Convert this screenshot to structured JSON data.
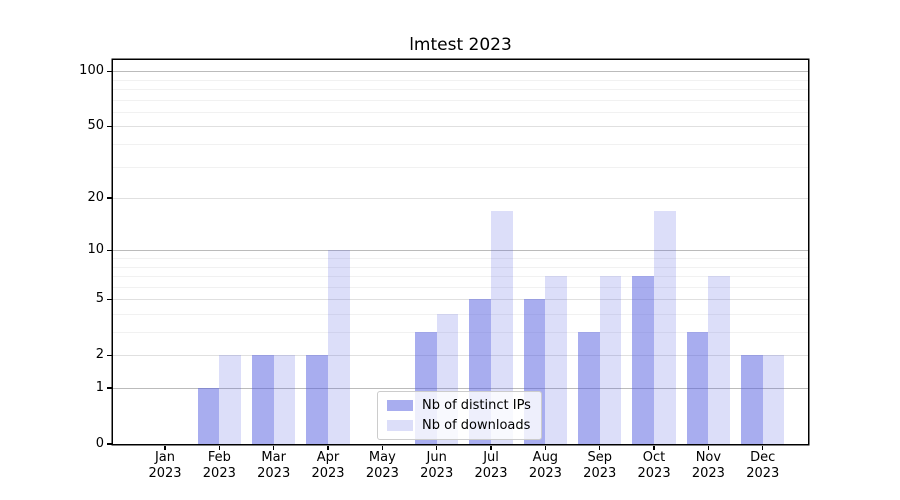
{
  "title": "lmtest 2023",
  "chart_data": {
    "type": "bar",
    "title": "lmtest 2023",
    "categories": [
      "Jan 2023",
      "Feb 2023",
      "Mar 2023",
      "Apr 2023",
      "May 2023",
      "Jun 2023",
      "Jul 2023",
      "Aug 2023",
      "Sep 2023",
      "Oct 2023",
      "Nov 2023",
      "Dec 2023"
    ],
    "series": [
      {
        "name": "Nb of distinct IPs",
        "color_hex": "#a8aeef",
        "rgba": "rgba(81,91,224,0.5)",
        "values": [
          0,
          1,
          2,
          2,
          0,
          3,
          5,
          5,
          3,
          7,
          3,
          2
        ]
      },
      {
        "name": "Nb of downloads",
        "color_hex": "#dcdef9",
        "rgba": "rgba(81,91,224,0.2)",
        "values": [
          0,
          2,
          2,
          10,
          0,
          4,
          17,
          7,
          7,
          17,
          7,
          2
        ]
      }
    ],
    "xlabel": "",
    "ylabel": "",
    "yscale": "log1p",
    "yticks": [
      0,
      1,
      2,
      5,
      10,
      20,
      50,
      100
    ],
    "decade_gridlines": [
      1,
      10,
      100
    ],
    "minor_gridlines": [
      3,
      4,
      6,
      7,
      8,
      9,
      30,
      40,
      60,
      70,
      80,
      90
    ],
    "ylim": [
      0,
      115
    ],
    "grid": "horizontal",
    "legend_position": "lower-center"
  },
  "colors": {
    "background": "#ffffff",
    "spine": "#000000",
    "grid_decade": "#bbbbbb",
    "grid_mid": "#e0e0e0",
    "grid_minor": "#f1f1f1",
    "text": "#000000",
    "legend_border": "#cccccc"
  }
}
